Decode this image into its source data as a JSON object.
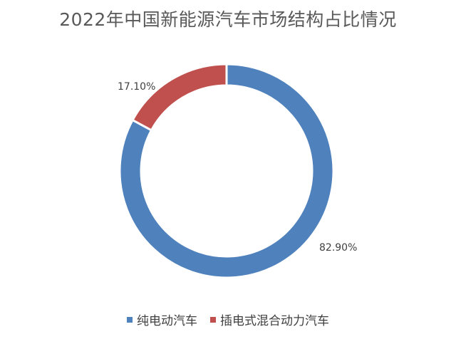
{
  "chart_data": {
    "type": "pie",
    "variant": "donut",
    "title": "2022年中国新能源汽车市场结构占比情况",
    "categories": [
      "纯电动汽车",
      "插电式混合动力汽车"
    ],
    "values": [
      82.9,
      17.1
    ],
    "labels": [
      "82.90%",
      "17.10%"
    ],
    "colors": [
      "#4f81bd",
      "#c0504d"
    ],
    "legend_position": "bottom"
  }
}
